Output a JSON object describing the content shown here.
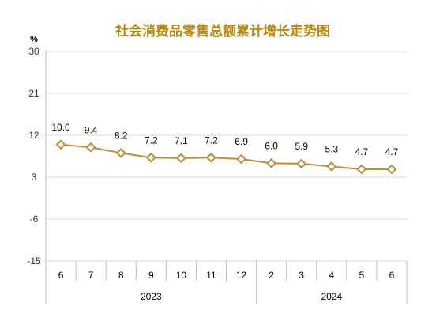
{
  "chart_data": {
    "type": "line",
    "title": "社会消费品零售总额累计增长走势图",
    "ylabel": "%",
    "ylim": [
      -15,
      30
    ],
    "yticks": [
      "30",
      "21",
      "12",
      "3",
      "-6",
      "-15"
    ],
    "grid": true,
    "categories": [
      "6",
      "7",
      "8",
      "9",
      "10",
      "11",
      "12",
      "2",
      "3",
      "4",
      "5",
      "6"
    ],
    "groups": [
      {
        "label": "2023",
        "count": 7
      },
      {
        "label": "2024",
        "count": 5
      }
    ],
    "series": [
      {
        "values": [
          10.0,
          9.4,
          8.2,
          7.2,
          7.1,
          7.2,
          6.9,
          6.0,
          5.9,
          5.3,
          4.7,
          4.7
        ],
        "labels": [
          "10.0",
          "9.4",
          "8.2",
          "7.2",
          "7.1",
          "7.2",
          "6.9",
          "6.0",
          "5.9",
          "5.3",
          "4.7",
          "4.7"
        ],
        "color": "#b8903a"
      }
    ],
    "colors": {
      "title": "#b8860b",
      "grid": "#d9d9d9",
      "axis": "#bfbfbf",
      "marker_fill": "#ffffff"
    }
  }
}
